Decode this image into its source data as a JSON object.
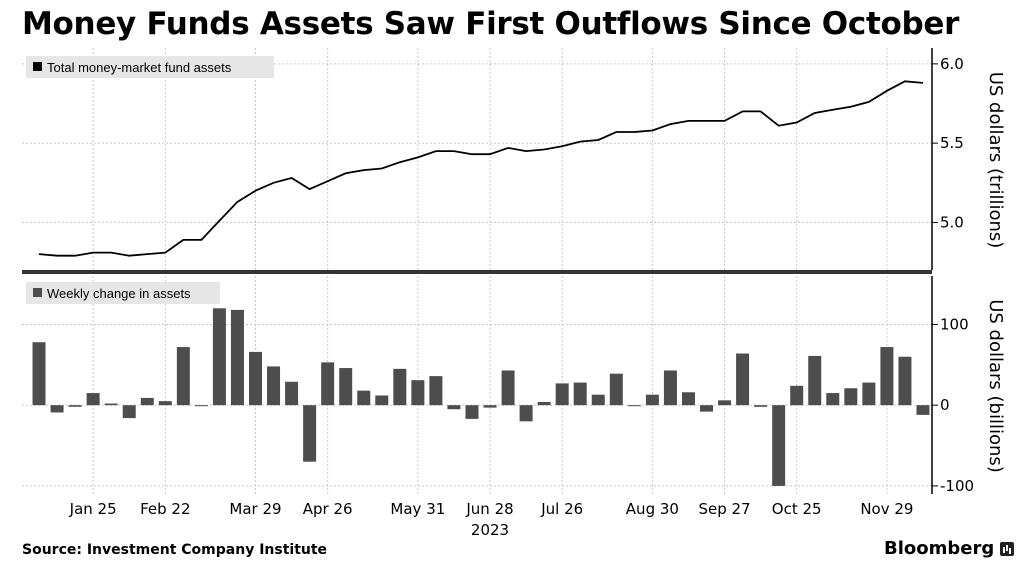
{
  "title": "Money Funds Assets Saw First Outflows Since October",
  "source": "Source: Investment Company Institute",
  "brand": "Bloomberg",
  "colors": {
    "line": "#000000",
    "bars": "#4d4d4d",
    "divider": "#333333",
    "legend_bg": "#e6e6e6"
  },
  "chart_data": [
    {
      "type": "line",
      "legend": "Total money-market fund assets",
      "ylabel": "US dollars (trillions)",
      "ylim": [
        4.7,
        6.1
      ],
      "yticks": [
        5.0,
        5.5,
        6.0
      ],
      "grid": true,
      "legend_position": "top-left",
      "values": [
        4.8,
        4.79,
        4.79,
        4.81,
        4.81,
        4.79,
        4.8,
        4.81,
        4.89,
        4.89,
        5.01,
        5.13,
        5.2,
        5.25,
        5.28,
        5.21,
        5.26,
        5.31,
        5.33,
        5.34,
        5.38,
        5.41,
        5.45,
        5.45,
        5.43,
        5.43,
        5.47,
        5.45,
        5.46,
        5.48,
        5.51,
        5.52,
        5.57,
        5.57,
        5.58,
        5.62,
        5.64,
        5.64,
        5.64,
        5.7,
        5.7,
        5.61,
        5.63,
        5.69,
        5.71,
        5.73,
        5.76,
        5.83,
        5.89,
        5.88
      ]
    },
    {
      "type": "bar",
      "legend": "Weekly change in assets",
      "ylabel": "US dollars (billions)",
      "ylim": [
        -110,
        160
      ],
      "yticks": [
        -100,
        0,
        100
      ],
      "grid": true,
      "legend_position": "top-left",
      "values": [
        78,
        -9,
        -2,
        15,
        2,
        -16,
        9,
        5,
        72,
        -1,
        120,
        118,
        66,
        48,
        29,
        -70,
        53,
        46,
        18,
        12,
        45,
        31,
        36,
        -5,
        -17,
        -3,
        43,
        -20,
        4,
        27,
        28,
        13,
        39,
        -1,
        13,
        43,
        16,
        -8,
        6,
        64,
        -2,
        -100,
        24,
        61,
        15,
        21,
        28,
        72,
        60,
        -12
      ]
    }
  ],
  "x_axis": {
    "tick_labels": [
      "Jan 25",
      "Feb 22",
      "Mar 29",
      "Apr 26",
      "May 31",
      "Jun 28",
      "Jul 26",
      "Aug 30",
      "Sep 27",
      "Oct 25",
      "Nov 29"
    ],
    "tick_weeks": [
      3,
      7,
      12,
      16,
      21,
      25,
      29,
      34,
      38,
      42,
      47
    ],
    "year_label": "2023",
    "year_week": 25
  }
}
